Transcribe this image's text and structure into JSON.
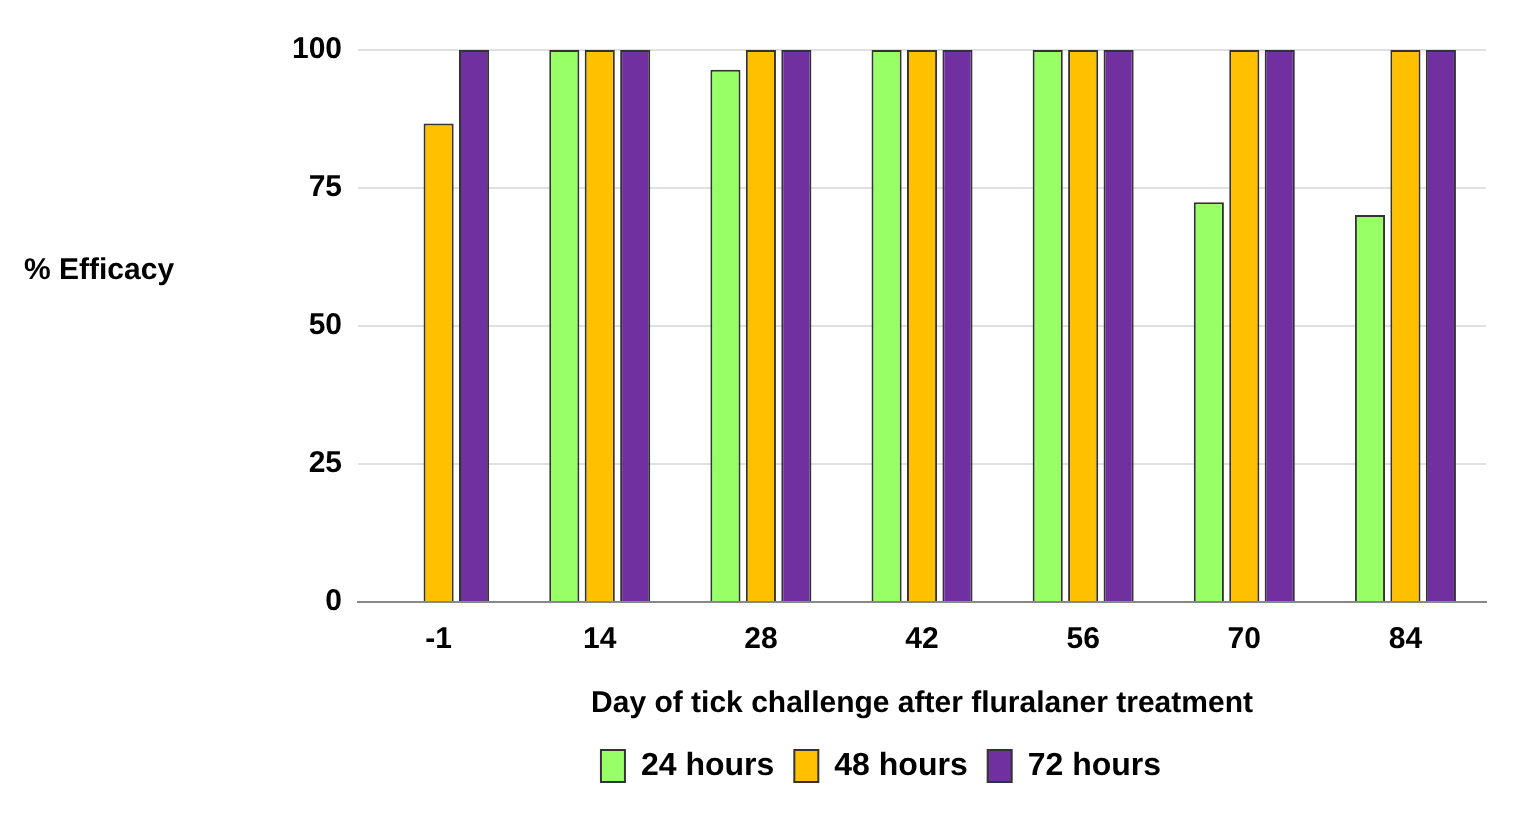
{
  "chart_data": {
    "type": "bar",
    "xlabel": "Day of tick challenge after fluralaner treatment",
    "ylabel": "% Efficacy",
    "categories": [
      "-1",
      "14",
      "28",
      "42",
      "56",
      "70",
      "84"
    ],
    "series": [
      {
        "name": "24 hours",
        "color": "#99ff66",
        "values": [
          0,
          100,
          96.4,
          100,
          100,
          72.4,
          70.1
        ]
      },
      {
        "name": "48 hours",
        "color": "#ffc000",
        "values": [
          86.7,
          100,
          100,
          100,
          100,
          100,
          100
        ]
      },
      {
        "name": "72 hours",
        "color": "#7030a0",
        "values": [
          100,
          100,
          100,
          100,
          100,
          100,
          100
        ]
      }
    ],
    "ylim": [
      0,
      100
    ],
    "yticks": [
      0,
      25,
      50,
      75,
      100
    ],
    "grid": "y",
    "legend": "bottom"
  }
}
